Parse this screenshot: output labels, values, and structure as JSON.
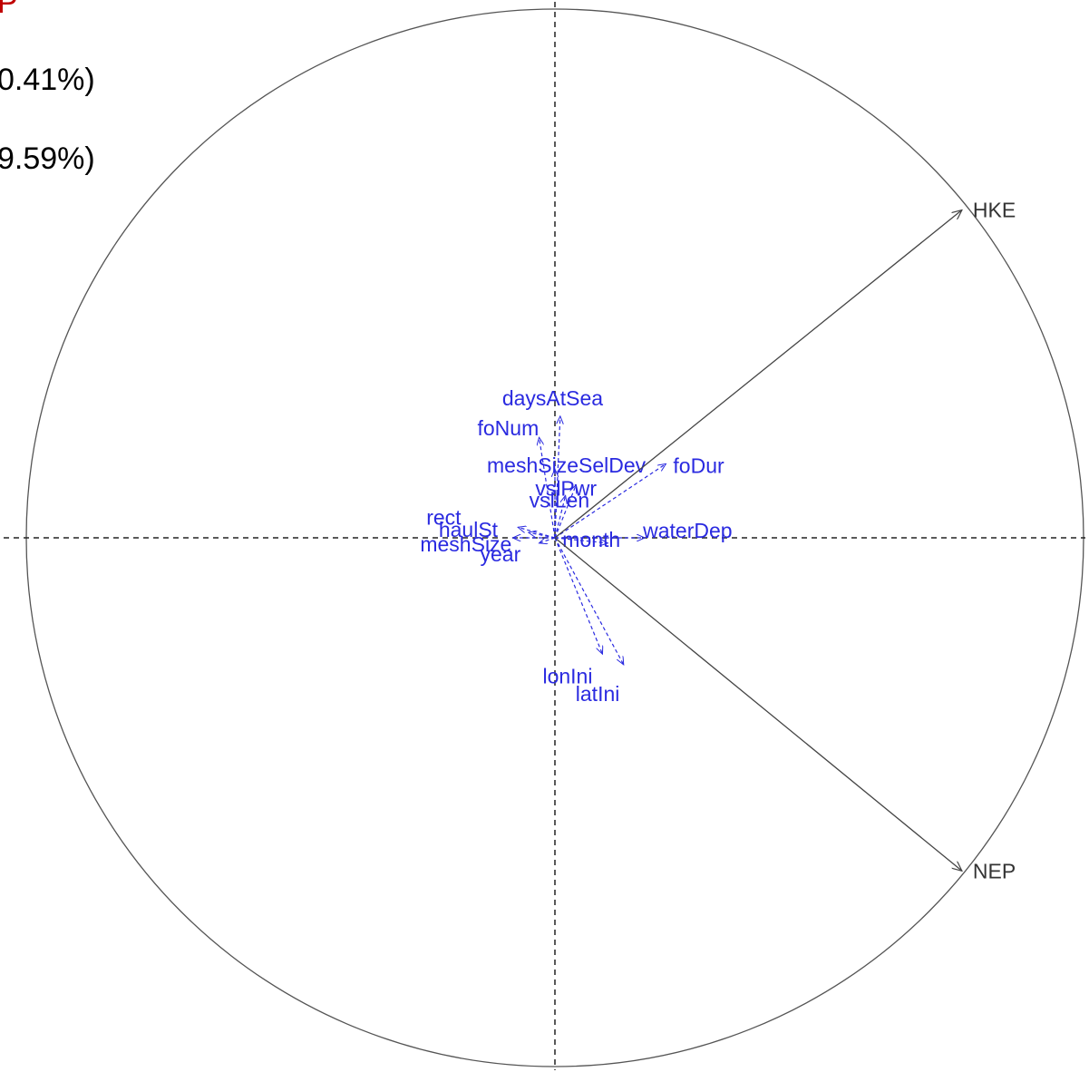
{
  "chart_data": {
    "type": "scatter",
    "subtype": "correlation-circle-biplot",
    "title": "P",
    "axis_labels": [
      "0.41%)",
      "9.59%)"
    ],
    "xlim": [
      -1,
      1
    ],
    "ylim": [
      -1,
      1
    ],
    "center_lines": "dashed",
    "colors": {
      "response": "#444444",
      "explanatory": "#2a2ae0",
      "title": "#c00000",
      "circle": "#555555"
    },
    "response_vectors": [
      {
        "name": "HKE",
        "x": 0.77,
        "y": 0.62
      },
      {
        "name": "NEP",
        "x": 0.77,
        "y": -0.63
      }
    ],
    "explanatory_vectors": [
      {
        "name": "daysAtSea",
        "x": 0.01,
        "y": 0.23
      },
      {
        "name": "foNum",
        "x": -0.03,
        "y": 0.19
      },
      {
        "name": "meshSizeSelDev",
        "x": 0.0,
        "y": 0.13
      },
      {
        "name": "foDur",
        "x": 0.21,
        "y": 0.14
      },
      {
        "name": "vslPwr",
        "x": 0.04,
        "y": 0.1
      },
      {
        "name": "vslLen",
        "x": 0.02,
        "y": 0.08
      },
      {
        "name": "waterDep",
        "x": 0.17,
        "y": 0.0
      },
      {
        "name": "month",
        "x": 0.1,
        "y": -0.01
      },
      {
        "name": "rect",
        "x": -0.07,
        "y": 0.02
      },
      {
        "name": "meshSize",
        "x": -0.08,
        "y": 0.0
      },
      {
        "name": "haulSt",
        "x": -0.05,
        "y": 0.01
      },
      {
        "name": "year",
        "x": -0.03,
        "y": -0.01
      },
      {
        "name": "lonIni",
        "x": 0.09,
        "y": -0.22
      },
      {
        "name": "latIni",
        "x": 0.13,
        "y": -0.24
      }
    ]
  }
}
